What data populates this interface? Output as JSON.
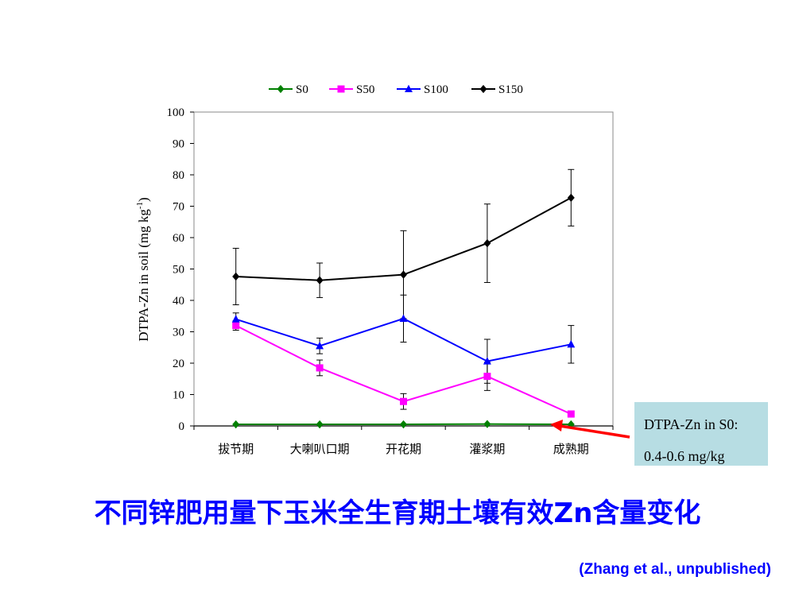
{
  "chart_data": {
    "type": "line",
    "categories": [
      "拔节期",
      "大喇叭口期",
      "开花期",
      "灌浆期",
      "成熟期"
    ],
    "series": [
      {
        "name": "S0",
        "color": "#008000",
        "marker": "diamond",
        "values": [
          0.5,
          0.5,
          0.5,
          0.6,
          0.5
        ],
        "errors": [
          0,
          0,
          0,
          0,
          0
        ]
      },
      {
        "name": "S50",
        "color": "#ff00ff",
        "marker": "square",
        "values": [
          32,
          18.5,
          7.8,
          15.8,
          3.8
        ],
        "errors": [
          1.5,
          2.5,
          2.5,
          4.5,
          1
        ]
      },
      {
        "name": "S100",
        "color": "#0000ff",
        "marker": "triangle",
        "values": [
          34,
          25.5,
          34.2,
          20.6,
          26
        ],
        "errors": [
          2,
          2.5,
          7.5,
          7,
          6
        ]
      },
      {
        "name": "S150",
        "color": "#000000",
        "marker": "diamond",
        "values": [
          47.6,
          46.4,
          48.2,
          58.2,
          72.7
        ],
        "errors": [
          9,
          5.5,
          14,
          12.5,
          9
        ]
      }
    ],
    "ylabel_main": "DTPA-Zn in soil (mg kg",
    "ylabel_sup": "-1",
    "ylabel_close": ")",
    "ylim": [
      0,
      100
    ],
    "yticks": [
      "0",
      "10",
      "20",
      "30",
      "40",
      "50",
      "60",
      "70",
      "80",
      "90",
      "100"
    ],
    "legend_position": "top-center",
    "grid": false
  },
  "annotation": {
    "line1": "DTPA-Zn in S0:",
    "line2": "0.4-0.6 mg/kg",
    "box_color": "#b7dde3",
    "arrow_color": "#ff0000"
  },
  "title": "不同锌肥用量下玉米全生育期土壤有效Zn含量变化",
  "citation": "(Zhang et al., unpublished)"
}
